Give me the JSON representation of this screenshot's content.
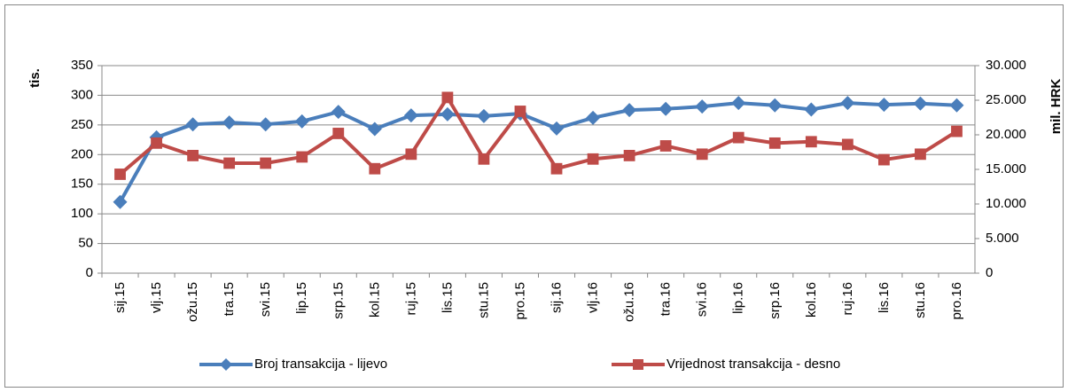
{
  "chart_data": {
    "type": "line",
    "ylabel": "tis.",
    "y2label": "mil. HRK",
    "categories": [
      "sij.15",
      "vlj.15",
      "ožu.15",
      "tra.15",
      "svi.15",
      "lip.15",
      "srp.15",
      "kol.15",
      "ruj.15",
      "lis.15",
      "stu.15",
      "pro.15",
      "sij.16",
      "vlj.16",
      "ožu.16",
      "tra.16",
      "svi.16",
      "lip.16",
      "srp.16",
      "kol.16",
      "ruj.16",
      "lis.16",
      "stu.16",
      "pro.16"
    ],
    "series": [
      {
        "name": "Broj transakcija - lijevo",
        "color": "#4a7ebb",
        "marker": "diamond",
        "values": [
          120,
          229,
          251,
          254,
          251,
          256,
          272,
          243,
          266,
          268,
          265,
          269,
          244,
          262,
          275,
          277,
          281,
          287,
          283,
          276,
          287,
          284,
          286,
          283
        ]
      },
      {
        "name": "Vrijednost transakcija - desno",
        "color": "#be4b48",
        "marker": "square",
        "axis": "y2",
        "values": [
          14300,
          18800,
          17000,
          15900,
          15900,
          16800,
          20200,
          15100,
          17200,
          25400,
          16500,
          23400,
          15100,
          16500,
          17000,
          18400,
          17200,
          19600,
          18800,
          19000,
          18600,
          16400,
          17200,
          20500
        ]
      }
    ],
    "ylim": [
      0,
      350
    ],
    "yticks": [
      0,
      50,
      100,
      150,
      200,
      250,
      300,
      350
    ],
    "y2lim": [
      0,
      30000
    ],
    "y2ticks": [
      0,
      {
        "value": 5000,
        "label": "5.000"
      },
      {
        "value": 10000,
        "label": "10.000"
      },
      {
        "value": 15000,
        "label": "15.000"
      },
      {
        "value": 20000,
        "label": "20.000"
      },
      {
        "value": 25000,
        "label": "25.000"
      },
      {
        "value": 30000,
        "label": "30.000"
      }
    ],
    "grid": true,
    "legend": "bottom"
  }
}
